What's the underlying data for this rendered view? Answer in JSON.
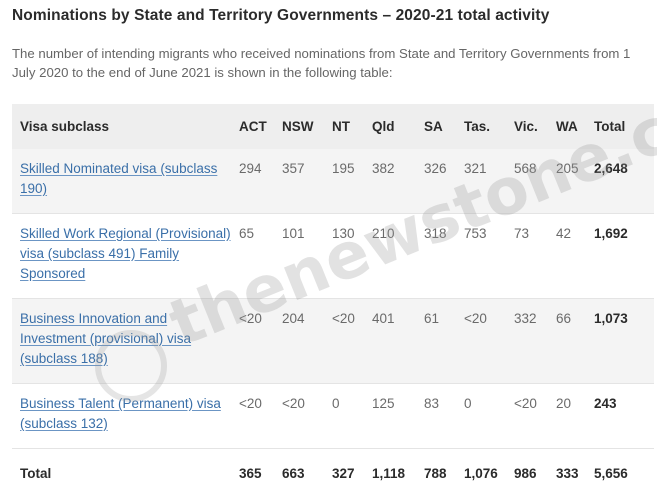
{
  "title": "Nominations by State and Territory Governments – 2020-21 total activity",
  "intro": "The number of intending migrants who received nominations from State and Territory Governments from 1 July 2020 to the end of June 2021 is shown in the following table:",
  "table": {
    "headers": [
      "Visa subclass",
      "ACT",
      "NSW",
      "NT",
      "Qld",
      "SA",
      "Tas.",
      "Vic.",
      "WA",
      "Total"
    ],
    "rows": [
      {
        "visa": "Skilled Nominated visa (subclass 190)",
        "act": "294",
        "nsw": "357",
        "nt": "195",
        "qld": "382",
        "sa": "326",
        "tas": "321",
        "vic": "568",
        "wa": "205",
        "total": "2,648"
      },
      {
        "visa": "Skilled Work Regional (Provisional) visa (subclass 491) Family Sponsored",
        "act": "65",
        "nsw": "101",
        "nt": "130",
        "qld": "210",
        "sa": "318",
        "tas": "753",
        "vic": "73",
        "wa": "42",
        "total": "1,692"
      },
      {
        "visa": "Business Innovation and Investment (provisional) visa (subclass 188)",
        "act": "<20",
        "nsw": "204",
        "nt": "<20",
        "qld": "401",
        "sa": "61",
        "tas": "<20",
        "vic": "332",
        "wa": "66",
        "total": "1,073"
      },
      {
        "visa": "Business Talent (Permanent) visa (subclass 132)",
        "act": "<20",
        "nsw": "<20",
        "nt": "0",
        "qld": "125",
        "sa": "83",
        "tas": "0",
        "vic": "<20",
        "wa": "20",
        "total": "243"
      }
    ],
    "totals": {
      "label": "Total",
      "act": "365",
      "nsw": "663",
      "nt": "327",
      "qld": "1,118",
      "sa": "788",
      "tas": "1,076",
      "vic": "986",
      "wa": "333",
      "total": "5,656"
    }
  },
  "watermark": "thenewstone.com"
}
